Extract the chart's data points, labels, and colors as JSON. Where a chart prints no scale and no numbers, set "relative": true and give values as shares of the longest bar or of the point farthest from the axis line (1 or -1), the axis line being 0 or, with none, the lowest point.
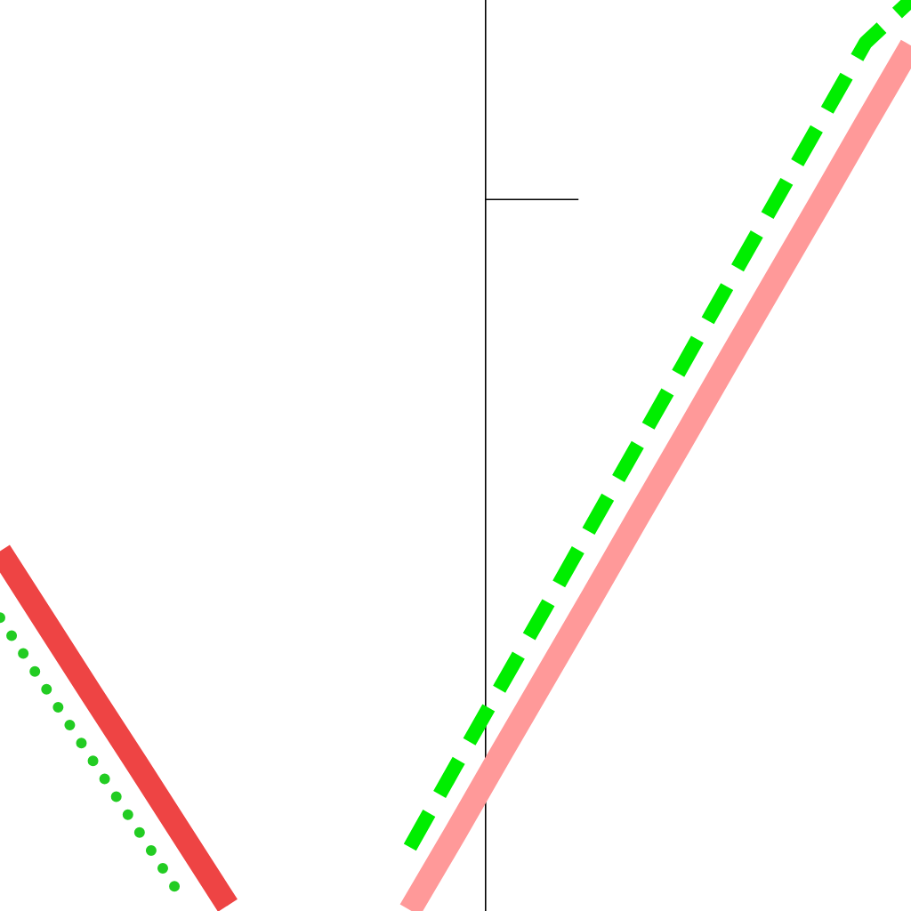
{
  "chart_data": {
    "type": "line",
    "relative": true,
    "categories": [
      null,
      null,
      null,
      null,
      null,
      null,
      null,
      null,
      null,
      null,
      null,
      null,
      null,
      null,
      null,
      null,
      null,
      null,
      null,
      null,
      null
    ],
    "series": [
      {
        "color": "#ee4444",
        "line_style": "solid",
        "values": [
          0.395,
          0.317,
          0.239,
          0.162,
          0.084,
          0.006,
          null,
          null,
          null,
          null,
          null,
          null,
          null,
          null,
          null,
          null,
          null,
          null,
          null,
          null,
          null
        ]
      },
      {
        "color": "#22cc22",
        "line_style": "dotted",
        "values": [
          0.322,
          0.245,
          0.168,
          0.091,
          0.014,
          null,
          null,
          null,
          null,
          null,
          null,
          null,
          null,
          null,
          null,
          null,
          null,
          null,
          null,
          null,
          null
        ]
      },
      {
        "color": "#ff9999",
        "line_style": "solid",
        "values": [
          null,
          null,
          null,
          null,
          null,
          null,
          null,
          null,
          null,
          0.001,
          0.086,
          0.173,
          0.259,
          0.345,
          0.432,
          0.518,
          0.605,
          0.691,
          0.777,
          0.864,
          0.95
        ]
      },
      {
        "color": "#00ee00",
        "line_style": "dashed",
        "values": [
          null,
          null,
          null,
          null,
          null,
          null,
          null,
          null,
          null,
          0.07,
          0.159,
          0.247,
          0.335,
          0.424,
          0.512,
          0.6,
          0.689,
          0.777,
          0.865,
          0.953,
          1.0
        ]
      }
    ],
    "ref_lines": [
      {
        "axis": "y",
        "value": 0.781,
        "color": "#000000"
      }
    ]
  }
}
